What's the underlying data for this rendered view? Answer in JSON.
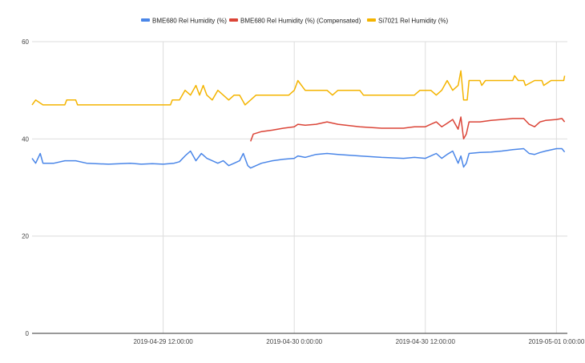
{
  "chart_data": {
    "type": "line",
    "title": "",
    "xlabel": "",
    "ylabel": "",
    "ylim": [
      0,
      60
    ],
    "yticks": [
      0,
      20,
      40,
      60
    ],
    "ytick_labels": [
      "0",
      "20",
      "40",
      "60"
    ],
    "xlim": [
      "2019-04-29 00:00",
      "2019-05-01 01:00"
    ],
    "xticks": [
      "2019-04-29 12:00",
      "2019-04-30 00:00",
      "2019-04-30 12:00",
      "2019-05-01 00:00"
    ],
    "xtick_labels": [
      "2019-04-29 12:00:00",
      "2019-04-30 0:00:00",
      "2019-04-30 12:00:00",
      "2019-05-01 0:00:00"
    ],
    "grid": true,
    "legend_position": "top",
    "series": [
      {
        "name": "BME680 Rel Humidity (%)",
        "color": "#4a86e8",
        "points": [
          [
            "2019-04-29 00:00",
            36.0
          ],
          [
            "2019-04-29 00:20",
            35.0
          ],
          [
            "2019-04-29 00:45",
            37.0
          ],
          [
            "2019-04-29 01:00",
            35.0
          ],
          [
            "2019-04-29 02:00",
            35.0
          ],
          [
            "2019-04-29 03:00",
            35.5
          ],
          [
            "2019-04-29 04:00",
            35.5
          ],
          [
            "2019-04-29 05:00",
            35.0
          ],
          [
            "2019-04-29 07:00",
            34.8
          ],
          [
            "2019-04-29 09:00",
            35.0
          ],
          [
            "2019-04-29 10:00",
            34.8
          ],
          [
            "2019-04-29 11:00",
            34.9
          ],
          [
            "2019-04-29 12:00",
            34.8
          ],
          [
            "2019-04-29 13:00",
            35.0
          ],
          [
            "2019-04-29 13:30",
            35.3
          ],
          [
            "2019-04-29 14:00",
            36.5
          ],
          [
            "2019-04-29 14:30",
            37.5
          ],
          [
            "2019-04-29 15:00",
            35.5
          ],
          [
            "2019-04-29 15:30",
            37.0
          ],
          [
            "2019-04-29 16:00",
            36.0
          ],
          [
            "2019-04-29 16:30",
            35.5
          ],
          [
            "2019-04-29 17:00",
            35.0
          ],
          [
            "2019-04-29 17:30",
            35.5
          ],
          [
            "2019-04-29 18:00",
            34.5
          ],
          [
            "2019-04-29 18:30",
            35.0
          ],
          [
            "2019-04-29 19:00",
            35.5
          ],
          [
            "2019-04-29 19:20",
            37.0
          ],
          [
            "2019-04-29 19:45",
            34.5
          ],
          [
            "2019-04-29 20:00",
            34.0
          ],
          [
            "2019-04-29 20:30",
            34.5
          ],
          [
            "2019-04-29 21:00",
            35.0
          ],
          [
            "2019-04-29 22:00",
            35.5
          ],
          [
            "2019-04-29 23:00",
            35.8
          ],
          [
            "2019-04-30 00:00",
            36.0
          ],
          [
            "2019-04-30 00:20",
            36.5
          ],
          [
            "2019-04-30 01:00",
            36.2
          ],
          [
            "2019-04-30 02:00",
            36.8
          ],
          [
            "2019-04-30 03:00",
            37.0
          ],
          [
            "2019-04-30 04:00",
            36.8
          ],
          [
            "2019-04-30 06:00",
            36.5
          ],
          [
            "2019-04-30 08:00",
            36.2
          ],
          [
            "2019-04-30 10:00",
            36.0
          ],
          [
            "2019-04-30 11:00",
            36.2
          ],
          [
            "2019-04-30 12:00",
            36.0
          ],
          [
            "2019-04-30 12:30",
            36.5
          ],
          [
            "2019-04-30 13:00",
            37.0
          ],
          [
            "2019-04-30 13:30",
            36.0
          ],
          [
            "2019-04-30 14:00",
            36.8
          ],
          [
            "2019-04-30 14:30",
            37.5
          ],
          [
            "2019-04-30 15:00",
            35.0
          ],
          [
            "2019-04-30 15:15",
            36.5
          ],
          [
            "2019-04-30 15:30",
            34.2
          ],
          [
            "2019-04-30 15:45",
            35.0
          ],
          [
            "2019-04-30 16:00",
            37.0
          ],
          [
            "2019-04-30 17:00",
            37.2
          ],
          [
            "2019-04-30 18:00",
            37.3
          ],
          [
            "2019-04-30 19:00",
            37.5
          ],
          [
            "2019-04-30 20:00",
            37.8
          ],
          [
            "2019-04-30 21:00",
            38.0
          ],
          [
            "2019-04-30 21:30",
            37.0
          ],
          [
            "2019-04-30 22:00",
            36.8
          ],
          [
            "2019-04-30 22:30",
            37.2
          ],
          [
            "2019-04-30 23:00",
            37.5
          ],
          [
            "2019-05-01 00:00",
            38.0
          ],
          [
            "2019-05-01 00:30",
            38.0
          ],
          [
            "2019-05-01 00:45",
            37.3
          ]
        ]
      },
      {
        "name": "BME680 Rel Humidity (%) (Compensated)",
        "color": "#db4437",
        "points": [
          [
            "2019-04-29 20:00",
            39.5
          ],
          [
            "2019-04-29 20:15",
            41.0
          ],
          [
            "2019-04-29 21:00",
            41.5
          ],
          [
            "2019-04-29 22:00",
            41.8
          ],
          [
            "2019-04-29 23:00",
            42.2
          ],
          [
            "2019-04-30 00:00",
            42.5
          ],
          [
            "2019-04-30 00:20",
            43.0
          ],
          [
            "2019-04-30 01:00",
            42.8
          ],
          [
            "2019-04-30 02:00",
            43.0
          ],
          [
            "2019-04-30 03:00",
            43.5
          ],
          [
            "2019-04-30 04:00",
            43.0
          ],
          [
            "2019-04-30 06:00",
            42.5
          ],
          [
            "2019-04-30 08:00",
            42.2
          ],
          [
            "2019-04-30 10:00",
            42.2
          ],
          [
            "2019-04-30 11:00",
            42.5
          ],
          [
            "2019-04-30 12:00",
            42.5
          ],
          [
            "2019-04-30 12:30",
            43.0
          ],
          [
            "2019-04-30 13:00",
            43.5
          ],
          [
            "2019-04-30 13:30",
            42.5
          ],
          [
            "2019-04-30 14:00",
            43.2
          ],
          [
            "2019-04-30 14:30",
            44.0
          ],
          [
            "2019-04-30 15:00",
            42.0
          ],
          [
            "2019-04-30 15:15",
            44.5
          ],
          [
            "2019-04-30 15:30",
            40.0
          ],
          [
            "2019-04-30 15:45",
            41.0
          ],
          [
            "2019-04-30 16:00",
            43.5
          ],
          [
            "2019-04-30 17:00",
            43.5
          ],
          [
            "2019-04-30 18:00",
            43.8
          ],
          [
            "2019-04-30 19:00",
            44.0
          ],
          [
            "2019-04-30 20:00",
            44.2
          ],
          [
            "2019-04-30 21:00",
            44.2
          ],
          [
            "2019-04-30 21:30",
            43.0
          ],
          [
            "2019-04-30 22:00",
            42.5
          ],
          [
            "2019-04-30 22:30",
            43.5
          ],
          [
            "2019-04-30 23:00",
            43.8
          ],
          [
            "2019-05-01 00:00",
            44.0
          ],
          [
            "2019-05-01 00:30",
            44.2
          ],
          [
            "2019-05-01 00:45",
            43.5
          ]
        ]
      },
      {
        "name": "Si7021 Rel Humidity (%)",
        "color": "#f4b400",
        "points": [
          [
            "2019-04-29 00:00",
            47.0
          ],
          [
            "2019-04-29 00:20",
            48.0
          ],
          [
            "2019-04-29 01:00",
            47.0
          ],
          [
            "2019-04-29 03:00",
            47.0
          ],
          [
            "2019-04-29 03:10",
            48.0
          ],
          [
            "2019-04-29 04:00",
            48.0
          ],
          [
            "2019-04-29 04:10",
            47.0
          ],
          [
            "2019-04-29 12:40",
            47.0
          ],
          [
            "2019-04-29 12:50",
            48.0
          ],
          [
            "2019-04-29 13:30",
            48.0
          ],
          [
            "2019-04-29 14:00",
            50.0
          ],
          [
            "2019-04-29 14:30",
            49.0
          ],
          [
            "2019-04-29 15:00",
            51.0
          ],
          [
            "2019-04-29 15:20",
            49.0
          ],
          [
            "2019-04-29 15:40",
            51.0
          ],
          [
            "2019-04-29 16:00",
            49.0
          ],
          [
            "2019-04-29 16:30",
            48.0
          ],
          [
            "2019-04-29 17:00",
            50.0
          ],
          [
            "2019-04-29 17:30",
            49.0
          ],
          [
            "2019-04-29 18:00",
            48.0
          ],
          [
            "2019-04-29 18:30",
            49.0
          ],
          [
            "2019-04-29 19:00",
            49.0
          ],
          [
            "2019-04-29 19:30",
            47.0
          ],
          [
            "2019-04-29 20:00",
            48.0
          ],
          [
            "2019-04-29 20:30",
            49.0
          ],
          [
            "2019-04-29 23:30",
            49.0
          ],
          [
            "2019-04-30 00:00",
            50.0
          ],
          [
            "2019-04-30 00:20",
            52.0
          ],
          [
            "2019-04-30 01:00",
            50.0
          ],
          [
            "2019-04-30 03:00",
            50.0
          ],
          [
            "2019-04-30 03:30",
            49.0
          ],
          [
            "2019-04-30 04:00",
            50.0
          ],
          [
            "2019-04-30 06:00",
            50.0
          ],
          [
            "2019-04-30 06:20",
            49.0
          ],
          [
            "2019-04-30 11:00",
            49.0
          ],
          [
            "2019-04-30 11:30",
            50.0
          ],
          [
            "2019-04-30 12:30",
            50.0
          ],
          [
            "2019-04-30 13:00",
            49.0
          ],
          [
            "2019-04-30 13:30",
            50.0
          ],
          [
            "2019-04-30 14:00",
            52.0
          ],
          [
            "2019-04-30 14:30",
            50.0
          ],
          [
            "2019-04-30 15:00",
            51.0
          ],
          [
            "2019-04-30 15:15",
            54.0
          ],
          [
            "2019-04-30 15:30",
            48.0
          ],
          [
            "2019-04-30 15:50",
            48.0
          ],
          [
            "2019-04-30 16:00",
            52.0
          ],
          [
            "2019-04-30 17:00",
            52.0
          ],
          [
            "2019-04-30 17:10",
            51.0
          ],
          [
            "2019-04-30 17:30",
            52.0
          ],
          [
            "2019-04-30 20:00",
            52.0
          ],
          [
            "2019-04-30 20:10",
            53.0
          ],
          [
            "2019-04-30 20:30",
            52.0
          ],
          [
            "2019-04-30 21:00",
            52.0
          ],
          [
            "2019-04-30 21:10",
            51.0
          ],
          [
            "2019-04-30 22:00",
            52.0
          ],
          [
            "2019-04-30 22:40",
            52.0
          ],
          [
            "2019-04-30 22:50",
            51.0
          ],
          [
            "2019-04-30 23:30",
            52.0
          ],
          [
            "2019-05-01 00:40",
            52.0
          ],
          [
            "2019-05-01 00:45",
            53.0
          ]
        ]
      }
    ]
  }
}
